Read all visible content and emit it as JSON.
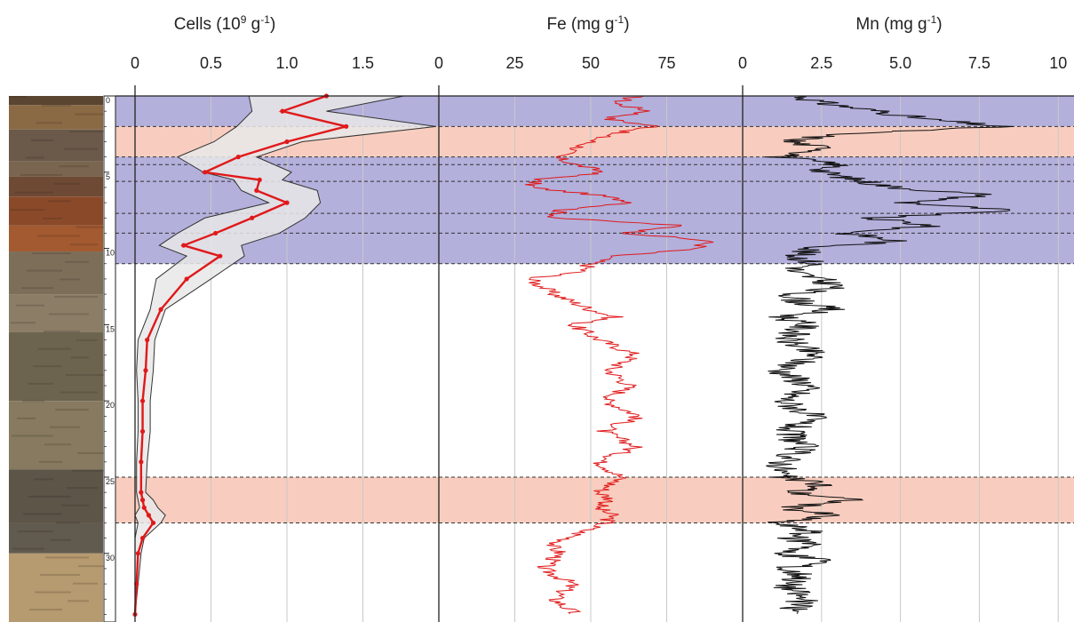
{
  "chart_data": [
    {
      "type": "line",
      "title_main": "Cells (10",
      "title_sup1": "9",
      "title_mid": " g",
      "title_sup2": "-1",
      "title_end": ")",
      "xlim": [
        0,
        2.0
      ],
      "ticks": [
        "0",
        "0.5",
        "1.0",
        "1.5"
      ],
      "tick_values": [
        0,
        0.5,
        1.0,
        1.5
      ],
      "depth": [
        0,
        1,
        2,
        3,
        4,
        5,
        5.5,
        6.2,
        7,
        8,
        9,
        9.8,
        10.5,
        12,
        14,
        16,
        18,
        20,
        22,
        24,
        26,
        26.5,
        27,
        27.5,
        28,
        29,
        30,
        32,
        34
      ],
      "median": [
        1.26,
        0.97,
        1.39,
        1.0,
        0.68,
        0.46,
        0.82,
        0.8,
        1.0,
        0.77,
        0.53,
        0.32,
        0.56,
        0.34,
        0.17,
        0.08,
        0.07,
        0.05,
        0.05,
        0.04,
        0.04,
        0.05,
        0.06,
        0.09,
        0.12,
        0.05,
        0.02,
        0.01,
        0.0
      ],
      "lower": [
        0.75,
        0.77,
        0.67,
        0.52,
        0.28,
        0.45,
        0.65,
        0.7,
        0.88,
        0.46,
        0.28,
        0.16,
        0.34,
        0.14,
        0.1,
        0.02,
        0.01,
        0.02,
        0.02,
        0.01,
        0.01,
        0.02,
        0.03,
        0.0,
        0.02,
        0.0,
        0.0,
        0.0,
        0.0
      ],
      "upper": [
        1.77,
        1.26,
        1.98,
        1.1,
        0.8,
        1.03,
        0.97,
        1.2,
        1.22,
        1.12,
        0.95,
        0.7,
        0.72,
        0.5,
        0.2,
        0.13,
        0.12,
        0.1,
        0.1,
        0.08,
        0.07,
        0.12,
        0.15,
        0.2,
        0.17,
        0.06,
        0.04,
        0.02,
        0.0
      ],
      "line_color": "#e0191a",
      "band_color": "#e8e8e8"
    },
    {
      "type": "line",
      "title_main": "Fe (mg g",
      "title_sup": "-1",
      "title_end": ")",
      "xlim": [
        0,
        100
      ],
      "ticks": [
        "0",
        "25",
        "50",
        "75"
      ],
      "tick_values": [
        0,
        25,
        50,
        75
      ],
      "depth": [
        0,
        0.5,
        1,
        1.5,
        2,
        2.5,
        3,
        3.5,
        4,
        4.5,
        5,
        5.5,
        6,
        6.5,
        7,
        7.5,
        8,
        8.5,
        9,
        9.5,
        10,
        10.5,
        11,
        11.5,
        12,
        13,
        14,
        14.5,
        15,
        16,
        17,
        18,
        19,
        20,
        21,
        22,
        23,
        24,
        25,
        26,
        26.5,
        27,
        27.5,
        28,
        28.5,
        29,
        29.5,
        30,
        31,
        32,
        33,
        34
      ],
      "values": [
        65,
        58,
        70,
        55,
        72,
        56,
        50,
        45,
        38,
        45,
        55,
        32,
        30,
        52,
        65,
        40,
        38,
        80,
        62,
        89,
        85,
        57,
        50,
        47,
        30,
        38,
        50,
        58,
        44,
        53,
        65,
        56,
        63,
        55,
        66,
        54,
        65,
        53,
        60,
        53,
        57,
        52,
        57,
        55,
        48,
        43,
        37,
        40,
        34,
        44,
        38,
        45
      ],
      "color": "#e0191a"
    },
    {
      "type": "line",
      "title_main": "Mn (mg g",
      "title_sup": "-1",
      "title_end": ")",
      "xlim": [
        0,
        10.5
      ],
      "ticks": [
        "0",
        "2.5",
        "5.0",
        "7.5",
        "10"
      ],
      "tick_values": [
        0,
        2.5,
        5.0,
        7.5,
        10
      ],
      "depth": [
        0,
        0.5,
        1,
        1.5,
        2,
        2.5,
        3,
        3.5,
        4,
        4.5,
        5,
        5.5,
        6,
        6.5,
        7,
        7.5,
        8,
        8.5,
        9,
        9.5,
        10,
        10.5,
        11,
        11.5,
        12,
        12.5,
        13,
        13.5,
        14,
        14.5,
        15,
        16,
        17,
        18,
        19,
        20,
        21,
        22,
        23,
        24,
        25,
        25.5,
        26,
        26.5,
        27,
        27.5,
        28,
        28.5,
        29,
        29.5,
        30,
        30.5,
        31,
        31.5,
        32,
        33,
        34
      ],
      "values": [
        1.8,
        2.6,
        4.3,
        5.7,
        8.2,
        2.9,
        1.5,
        2.8,
        1.2,
        3.0,
        2.5,
        3.6,
        4.8,
        7.8,
        5.2,
        8.4,
        4.0,
        6.0,
        3.3,
        4.9,
        2.2,
        1.7,
        2.3,
        1.5,
        2.4,
        3.0,
        1.6,
        1.8,
        2.8,
        1.3,
        2.0,
        1.4,
        2.3,
        1.2,
        2.1,
        1.3,
        2.2,
        1.4,
        1.9,
        1.3,
        1.2,
        2.6,
        1.6,
        3.5,
        1.4,
        2.8,
        1.0,
        2.2,
        1.5,
        2.5,
        1.0,
        2.8,
        1.3,
        2.0,
        1.4,
        1.9,
        1.5
      ],
      "color": "#111111"
    }
  ],
  "depth_axis": {
    "ticks": [
      "0",
      "5",
      "10",
      "15",
      "20",
      "25",
      "30"
    ],
    "tick_values": [
      0,
      5,
      10,
      15,
      20,
      25,
      30
    ],
    "max": 34.5
  },
  "bands": [
    {
      "from": 0,
      "to": 2.0,
      "type": "purple"
    },
    {
      "from": 2.0,
      "to": 4.0,
      "type": "orange"
    },
    {
      "from": 4.0,
      "to": 11.0,
      "type": "purple"
    },
    {
      "from": 25.0,
      "to": 28.0,
      "type": "orange"
    }
  ],
  "dashed_depths": [
    2.0,
    4.0,
    4.5,
    5.6,
    7.7,
    9.0,
    11.0,
    25.0,
    28.0
  ],
  "colors": {
    "purple": "#b3b0dc",
    "orange": "#f8cdbf",
    "grid": "#c8c8c8",
    "axis": "#222222"
  },
  "core_strip": [
    {
      "from": 0,
      "to": 0.6,
      "color": "#5a4630"
    },
    {
      "from": 0.6,
      "to": 2.2,
      "color": "#8a6a45"
    },
    {
      "from": 2.2,
      "to": 4.3,
      "color": "#6b5a4a"
    },
    {
      "from": 4.3,
      "to": 5.3,
      "color": "#7a6650"
    },
    {
      "from": 5.3,
      "to": 6.6,
      "color": "#6e4a35"
    },
    {
      "from": 6.6,
      "to": 8.5,
      "color": "#8a4a2a"
    },
    {
      "from": 8.5,
      "to": 10.2,
      "color": "#a35a30"
    },
    {
      "from": 10.2,
      "to": 13.0,
      "color": "#7d6e5a"
    },
    {
      "from": 13.0,
      "to": 15.5,
      "color": "#8c7d66"
    },
    {
      "from": 15.5,
      "to": 20.0,
      "color": "#6d6450"
    },
    {
      "from": 20.0,
      "to": 24.5,
      "color": "#877a60"
    },
    {
      "from": 24.5,
      "to": 28.0,
      "color": "#5c5548"
    },
    {
      "from": 28.0,
      "to": 30.0,
      "color": "#615a4e"
    },
    {
      "from": 30.0,
      "to": 34.5,
      "color": "#b69a70"
    }
  ]
}
